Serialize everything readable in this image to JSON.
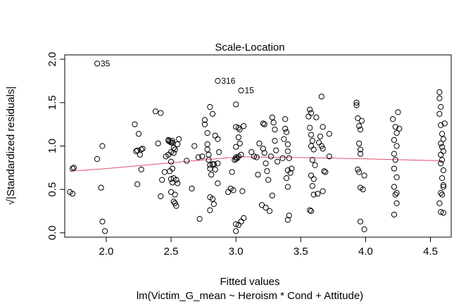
{
  "chart_data": {
    "type": "scatter",
    "title": "Scale-Location",
    "xlabel": "Fitted values",
    "sublabel": "lm(Victim_G_mean ~ Heroism * Cond + Attitude)",
    "ylabel": "√|Standardized residuals|",
    "xlim": [
      1.68,
      4.66
    ],
    "ylim": [
      -0.05,
      2.05
    ],
    "xticks": [
      {
        "v": 2.0,
        "label": "2.0"
      },
      {
        "v": 2.5,
        "label": "2.5"
      },
      {
        "v": 3.0,
        "label": "3.0"
      },
      {
        "v": 3.5,
        "label": "3.5"
      },
      {
        "v": 4.0,
        "label": "4.0"
      },
      {
        "v": 4.5,
        "label": "4.5"
      }
    ],
    "yticks": [
      {
        "v": 0.0,
        "label": "0.0"
      },
      {
        "v": 0.5,
        "label": "0.5"
      },
      {
        "v": 1.0,
        "label": "1.0"
      },
      {
        "v": 1.5,
        "label": "1.5"
      },
      {
        "v": 2.0,
        "label": "2.0"
      }
    ],
    "smooth_color": "#DF536B",
    "smooth": [
      [
        1.72,
        0.71
      ],
      [
        2.0,
        0.74
      ],
      [
        2.3,
        0.78
      ],
      [
        2.6,
        0.82
      ],
      [
        2.9,
        0.86
      ],
      [
        3.05,
        0.875
      ],
      [
        3.3,
        0.87
      ],
      [
        3.6,
        0.865
      ],
      [
        3.9,
        0.855
      ],
      [
        4.2,
        0.845
      ],
      [
        4.59,
        0.83
      ]
    ],
    "labeled_points": [
      {
        "x": 1.93,
        "y": 1.95,
        "label": "35"
      },
      {
        "x": 2.86,
        "y": 1.75,
        "label": "316"
      },
      {
        "x": 3.04,
        "y": 1.64,
        "label": "15"
      }
    ],
    "points": [
      [
        1.72,
        0.47
      ],
      [
        1.74,
        0.45
      ],
      [
        1.74,
        0.74
      ],
      [
        1.75,
        0.75
      ],
      [
        1.93,
        0.85
      ],
      [
        1.96,
        0.52
      ],
      [
        1.97,
        1.0
      ],
      [
        1.97,
        0.13
      ],
      [
        1.99,
        0.02
      ],
      [
        2.22,
        1.25
      ],
      [
        2.23,
        0.94
      ],
      [
        2.24,
        0.95
      ],
      [
        2.25,
        1.14
      ],
      [
        2.26,
        0.9
      ],
      [
        2.27,
        0.96
      ],
      [
        2.28,
        0.97
      ],
      [
        2.27,
        0.73
      ],
      [
        2.24,
        0.56
      ],
      [
        2.38,
        1.4
      ],
      [
        2.42,
        1.38
      ],
      [
        2.4,
        1.03
      ],
      [
        2.42,
        0.42
      ],
      [
        2.43,
        0.61
      ],
      [
        2.45,
        0.7
      ],
      [
        2.46,
        0.88
      ],
      [
        2.48,
        1.06
      ],
      [
        2.48,
        1.07
      ],
      [
        2.49,
        1.05
      ],
      [
        2.5,
        1.04
      ],
      [
        2.51,
        1.06
      ],
      [
        2.51,
        1.04
      ],
      [
        2.52,
        0.98
      ],
      [
        2.5,
        0.93
      ],
      [
        2.52,
        0.92
      ],
      [
        2.53,
        0.96
      ],
      [
        2.48,
        0.9
      ],
      [
        2.5,
        0.82
      ],
      [
        2.51,
        0.74
      ],
      [
        2.49,
        0.71
      ],
      [
        2.52,
        0.63
      ],
      [
        2.5,
        0.62
      ],
      [
        2.51,
        0.58
      ],
      [
        2.54,
        0.61
      ],
      [
        2.55,
        0.57
      ],
      [
        2.5,
        0.47
      ],
      [
        2.52,
        0.36
      ],
      [
        2.53,
        0.34
      ],
      [
        2.54,
        0.31
      ],
      [
        2.53,
        0.44
      ],
      [
        2.55,
        1.02
      ],
      [
        2.56,
        1.08
      ],
      [
        2.62,
        0.83
      ],
      [
        2.66,
        0.51
      ],
      [
        2.68,
        1.0
      ],
      [
        2.71,
        0.87
      ],
      [
        2.72,
        0.16
      ],
      [
        2.74,
        0.88
      ],
      [
        2.76,
        1.3
      ],
      [
        2.76,
        1.25
      ],
      [
        2.78,
        1.15
      ],
      [
        2.78,
        1.02
      ],
      [
        2.78,
        0.96
      ],
      [
        2.79,
        0.9
      ],
      [
        2.79,
        0.84
      ],
      [
        2.8,
        0.78
      ],
      [
        2.8,
        0.74
      ],
      [
        2.81,
        0.67
      ],
      [
        2.82,
        0.79
      ],
      [
        2.83,
        0.79
      ],
      [
        2.84,
        0.73
      ],
      [
        2.8,
        0.41
      ],
      [
        2.82,
        0.39
      ],
      [
        2.8,
        0.26
      ],
      [
        2.83,
        0.33
      ],
      [
        2.8,
        1.45
      ],
      [
        2.82,
        1.37
      ],
      [
        2.84,
        1.12
      ],
      [
        2.86,
        1.08
      ],
      [
        2.87,
        0.93
      ],
      [
        2.86,
        0.57
      ],
      [
        2.86,
        0.8
      ],
      [
        2.94,
        0.47
      ],
      [
        2.96,
        0.51
      ],
      [
        2.98,
        0.49
      ],
      [
        2.97,
        0.7
      ],
      [
        2.99,
        0.84
      ],
      [
        3.0,
        0.85
      ],
      [
        3.0,
        0.87
      ],
      [
        3.01,
        0.86
      ],
      [
        3.02,
        0.88
      ],
      [
        3.0,
        1.48
      ],
      [
        3.0,
        1.22
      ],
      [
        3.02,
        1.21
      ],
      [
        3.03,
        1.19
      ],
      [
        3.02,
        1.1
      ],
      [
        3.03,
        1.03
      ],
      [
        3.04,
        0.9
      ],
      [
        3.0,
        0.99
      ],
      [
        3.0,
        0.1
      ],
      [
        3.02,
        0.09
      ],
      [
        3.0,
        0.02
      ],
      [
        3.04,
        0.13
      ],
      [
        3.06,
        0.17
      ],
      [
        3.05,
        0.48
      ],
      [
        3.06,
        1.23
      ],
      [
        3.12,
        0.93
      ],
      [
        3.14,
        0.88
      ],
      [
        3.16,
        0.87
      ],
      [
        3.17,
        0.67
      ],
      [
        3.18,
        1.03
      ],
      [
        3.21,
        1.26
      ],
      [
        3.22,
        1.25
      ],
      [
        3.21,
        0.97
      ],
      [
        3.22,
        0.92
      ],
      [
        3.23,
        0.8
      ],
      [
        3.24,
        0.71
      ],
      [
        3.25,
        0.61
      ],
      [
        3.2,
        0.32
      ],
      [
        3.23,
        0.29
      ],
      [
        3.26,
        0.25
      ],
      [
        3.27,
        0.88
      ],
      [
        3.28,
        1.33
      ],
      [
        3.29,
        1.27
      ],
      [
        3.3,
        1.19
      ],
      [
        3.3,
        1.06
      ],
      [
        3.31,
        0.95
      ],
      [
        3.32,
        0.82
      ],
      [
        3.28,
        0.43
      ],
      [
        3.36,
        0.86
      ],
      [
        3.37,
        1.08
      ],
      [
        3.38,
        1.2
      ],
      [
        3.38,
        1.31
      ],
      [
        3.39,
        1.16
      ],
      [
        3.4,
        1.02
      ],
      [
        3.4,
        0.94
      ],
      [
        3.41,
        0.86
      ],
      [
        3.4,
        0.72
      ],
      [
        3.42,
        0.69
      ],
      [
        3.43,
        0.74
      ],
      [
        3.4,
        0.53
      ],
      [
        3.41,
        0.2
      ],
      [
        3.4,
        0.15
      ],
      [
        3.39,
        0.63
      ],
      [
        3.57,
        1.42
      ],
      [
        3.58,
        1.38
      ],
      [
        3.56,
        1.34
      ],
      [
        3.57,
        1.21
      ],
      [
        3.58,
        1.13
      ],
      [
        3.59,
        1.06
      ],
      [
        3.58,
        1.0
      ],
      [
        3.6,
        0.96
      ],
      [
        3.59,
        0.84
      ],
      [
        3.61,
        0.78
      ],
      [
        3.58,
        0.66
      ],
      [
        3.6,
        0.62
      ],
      [
        3.59,
        0.54
      ],
      [
        3.57,
        0.26
      ],
      [
        3.58,
        0.25
      ],
      [
        3.62,
        1.33
      ],
      [
        3.6,
        0.44
      ],
      [
        3.64,
        1.04
      ],
      [
        3.65,
        1.11
      ],
      [
        3.66,
        1.0
      ],
      [
        3.67,
        0.97
      ],
      [
        3.66,
        1.57
      ],
      [
        3.67,
        1.22
      ],
      [
        3.68,
        0.71
      ],
      [
        3.69,
        0.7
      ],
      [
        3.67,
        0.48
      ],
      [
        3.72,
        1.14
      ],
      [
        3.72,
        0.88
      ],
      [
        3.63,
        0.45
      ],
      [
        3.93,
        1.5
      ],
      [
        3.93,
        1.47
      ],
      [
        3.94,
        1.32
      ],
      [
        3.95,
        1.23
      ],
      [
        3.96,
        1.19
      ],
      [
        3.95,
        1.03
      ],
      [
        3.96,
        0.96
      ],
      [
        3.96,
        0.91
      ],
      [
        3.94,
        0.73
      ],
      [
        3.95,
        0.7
      ],
      [
        3.96,
        0.52
      ],
      [
        3.98,
        0.5
      ],
      [
        3.96,
        0.13
      ],
      [
        3.99,
        0.04
      ],
      [
        3.97,
        1.29
      ],
      [
        3.99,
        0.66
      ],
      [
        4.21,
        1.31
      ],
      [
        4.23,
        1.22
      ],
      [
        4.24,
        1.15
      ],
      [
        4.22,
        1.07
      ],
      [
        4.24,
        1.0
      ],
      [
        4.22,
        0.91
      ],
      [
        4.23,
        0.84
      ],
      [
        4.22,
        0.74
      ],
      [
        4.24,
        0.64
      ],
      [
        4.22,
        0.53
      ],
      [
        4.24,
        0.46
      ],
      [
        4.23,
        0.44
      ],
      [
        4.22,
        0.21
      ],
      [
        4.24,
        0.34
      ],
      [
        4.25,
        1.39
      ],
      [
        4.26,
        1.2
      ],
      [
        4.57,
        1.62
      ],
      [
        4.57,
        1.55
      ],
      [
        4.58,
        1.45
      ],
      [
        4.57,
        1.37
      ],
      [
        4.58,
        1.24
      ],
      [
        4.59,
        1.14
      ],
      [
        4.6,
        1.08
      ],
      [
        4.58,
        1.03
      ],
      [
        4.59,
        0.99
      ],
      [
        4.6,
        0.94
      ],
      [
        4.58,
        0.9
      ],
      [
        4.59,
        0.84
      ],
      [
        4.58,
        0.8
      ],
      [
        4.6,
        0.72
      ],
      [
        4.59,
        0.63
      ],
      [
        4.6,
        0.53
      ],
      [
        4.58,
        0.46
      ],
      [
        4.59,
        0.44
      ],
      [
        4.57,
        0.34
      ],
      [
        4.58,
        0.24
      ],
      [
        4.6,
        0.23
      ],
      [
        4.6,
        0.55
      ],
      [
        4.61,
        1.26
      ]
    ]
  }
}
